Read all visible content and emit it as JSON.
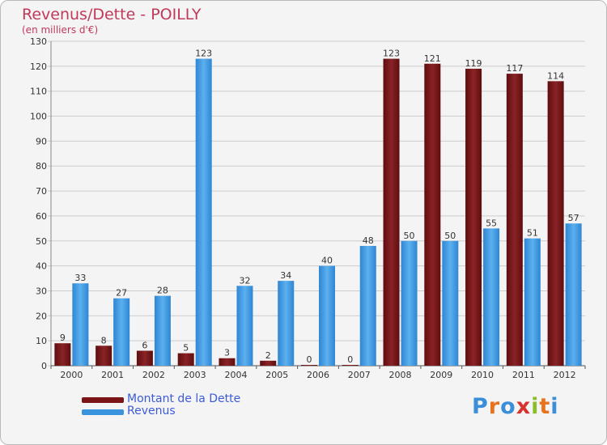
{
  "title": "Revenus/Dette - POILLY",
  "subtitle": "(en milliers d'€)",
  "logo_text": "Proxiti",
  "colors": {
    "title": "#c0395b",
    "dette": "#7a1416",
    "revenus": "#3a94dd",
    "legend_text": "#3d5bd6",
    "grid": "#cccccc"
  },
  "chart_data": {
    "type": "bar",
    "title": "Revenus/Dette - POILLY",
    "subtitle": "(en milliers d'€)",
    "categories": [
      "2000",
      "2001",
      "2002",
      "2003",
      "2004",
      "2005",
      "2006",
      "2007",
      "2008",
      "2009",
      "2010",
      "2011",
      "2012"
    ],
    "series": [
      {
        "name": "Montant de la Dette",
        "values": [
          9,
          8,
          6,
          5,
          3,
          2,
          0,
          0,
          123,
          121,
          119,
          117,
          114
        ]
      },
      {
        "name": "Revenus",
        "values": [
          33,
          27,
          28,
          123,
          32,
          34,
          40,
          48,
          50,
          50,
          55,
          51,
          57
        ]
      }
    ],
    "ylim": [
      0,
      130
    ],
    "yticks": [
      0,
      10,
      20,
      30,
      40,
      50,
      60,
      70,
      80,
      90,
      100,
      110,
      120,
      130
    ],
    "grid": true,
    "legend": "bottom-left"
  }
}
